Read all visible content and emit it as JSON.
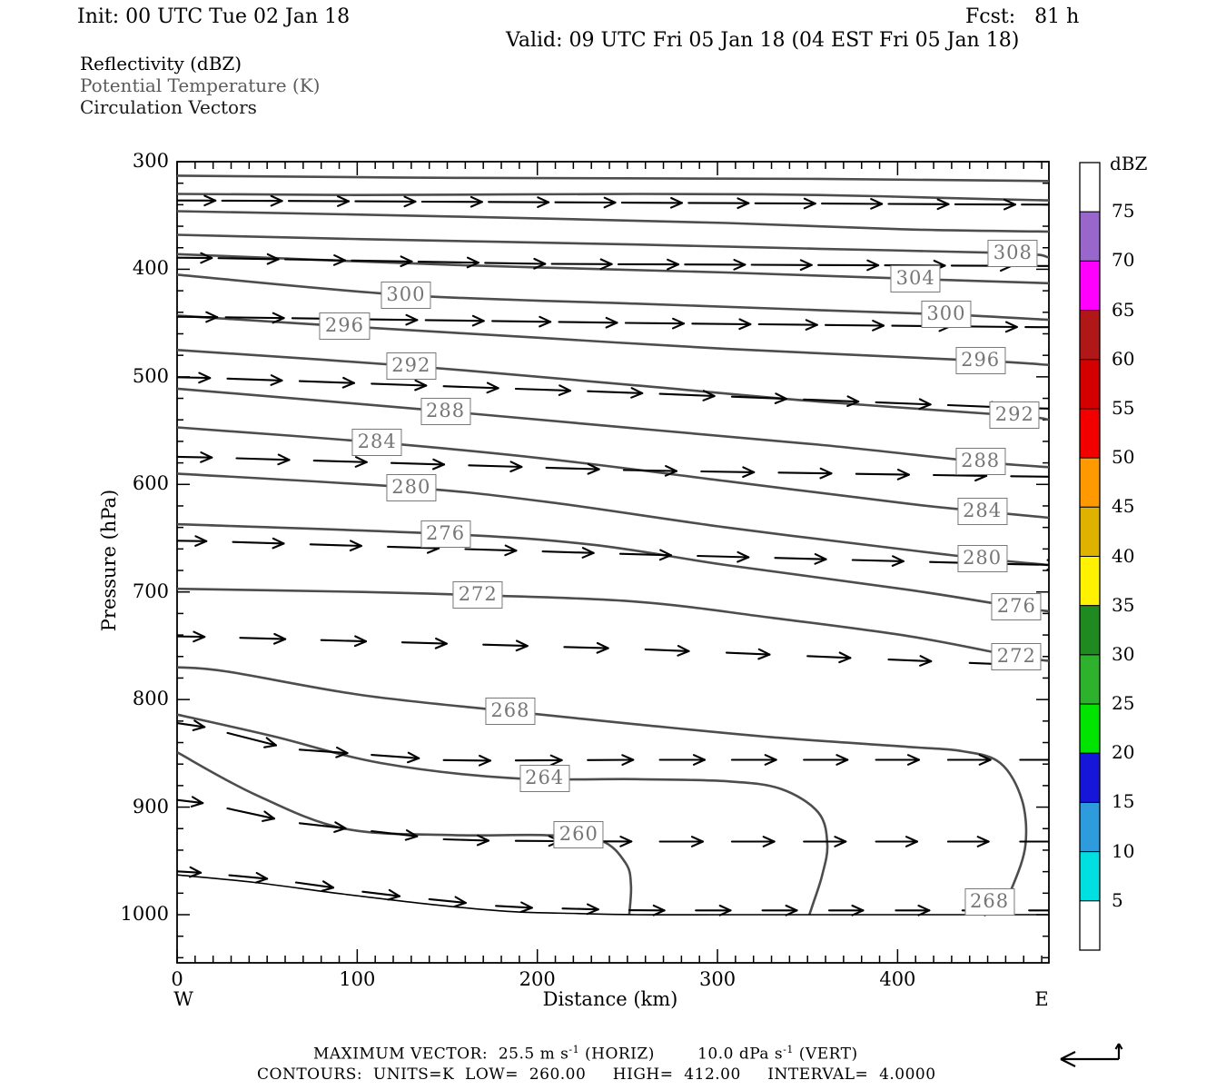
{
  "header": {
    "init": "Init: 00 UTC Tue 02 Jan 18",
    "fcst": "Fcst:   81 h",
    "valid": "Valid: 09 UTC Fri 05 Jan 18 (04 EST Fri 05 Jan 18)",
    "fields": [
      {
        "label": "Reflectivity (dBZ)",
        "color": "#000000"
      },
      {
        "label": "Potential Temperature (K)",
        "color": "#5a5a5a"
      },
      {
        "label": "Circulation Vectors",
        "color": "#1a1a1a"
      }
    ]
  },
  "axes": {
    "y": {
      "title": "Pressure (hPa)"
    },
    "x": {
      "title": "Distance (km)",
      "west": "W",
      "east": "E"
    }
  },
  "footer": {
    "line1": {
      "p1": "MAXIMUM VECTOR:  25.5 m s",
      "s1": "-1",
      "p2": " (HORIZ)        10.0 dPa s",
      "s2": "-1",
      "p3": " (VERT)"
    },
    "line2": "CONTOURS:  UNITS=K  LOW=  260.00     HIGH=  412.00     INTERVAL=  4.0000"
  },
  "chart_data": {
    "type": "contour-cross-section",
    "title": "Reflectivity (dBZ), Potential Temperature (K), Circulation Vectors",
    "xlabel": "Distance (km)",
    "ylabel": "Pressure (hPa)",
    "x_range_km": [
      0,
      484
    ],
    "y_range_hpa": [
      300,
      1045
    ],
    "x_ticks": [
      "0",
      "100",
      "200",
      "300",
      "400"
    ],
    "x_tick_values": [
      0,
      100,
      200,
      300,
      400
    ],
    "x_minor_step": 10,
    "y_ticks": [
      "300",
      "400",
      "500",
      "600",
      "700",
      "800",
      "900",
      "1000"
    ],
    "y_tick_values": [
      300,
      400,
      500,
      600,
      700,
      800,
      900,
      1000
    ],
    "y_minor_step": 20,
    "contour_units": "K",
    "contour_low": 260.0,
    "contour_high": 412.0,
    "contour_interval": 4.0,
    "max_vector_horiz_ms": 25.5,
    "max_vector_vert_dpas": 10.0,
    "contour_color": "#4d4d4d",
    "vector_color": "#000000",
    "isentropes": [
      {
        "value": 320,
        "path": [
          [
            0,
            313
          ],
          [
            154,
            315
          ],
          [
            356,
            316
          ],
          [
            484,
            318
          ]
        ],
        "labels": []
      },
      {
        "value": 316,
        "path": [
          [
            0,
            330
          ],
          [
            103,
            331
          ],
          [
            255,
            330
          ],
          [
            356,
            331
          ],
          [
            456,
            335
          ],
          [
            484,
            336
          ]
        ],
        "labels": []
      },
      {
        "value": 312,
        "path": [
          [
            0,
            346
          ],
          [
            154,
            351
          ],
          [
            305,
            357
          ],
          [
            406,
            363
          ],
          [
            484,
            365
          ]
        ],
        "labels": []
      },
      {
        "value": 308,
        "path": [
          [
            0,
            368
          ],
          [
            103,
            372
          ],
          [
            255,
            377
          ],
          [
            356,
            381
          ],
          [
            464,
            385
          ],
          [
            484,
            389
          ]
        ],
        "labels": [
          [
            464,
            385
          ]
        ]
      },
      {
        "value": 304,
        "path": [
          [
            0,
            386
          ],
          [
            154,
            396
          ],
          [
            305,
            403
          ],
          [
            410,
            409
          ],
          [
            484,
            413
          ]
        ],
        "labels": [
          [
            410,
            409
          ]
        ]
      },
      {
        "value": 300,
        "path": [
          [
            0,
            405
          ],
          [
            127,
            424
          ],
          [
            255,
            432
          ],
          [
            356,
            438
          ],
          [
            427,
            442
          ],
          [
            484,
            447
          ]
        ],
        "labels": [
          [
            127,
            424
          ],
          [
            427,
            442
          ]
        ]
      },
      {
        "value": 296,
        "path": [
          [
            0,
            443
          ],
          [
            93,
            453
          ],
          [
            204,
            464
          ],
          [
            305,
            474
          ],
          [
            446,
            485
          ],
          [
            484,
            489
          ]
        ],
        "labels": [
          [
            93,
            453
          ],
          [
            446,
            485
          ]
        ]
      },
      {
        "value": 292,
        "path": [
          [
            0,
            475
          ],
          [
            130,
            490
          ],
          [
            255,
            508
          ],
          [
            356,
            523
          ],
          [
            465,
            536
          ],
          [
            484,
            540
          ]
        ],
        "labels": [
          [
            130,
            490
          ],
          [
            465,
            536
          ]
        ]
      },
      {
        "value": 288,
        "path": [
          [
            0,
            511
          ],
          [
            149,
            532
          ],
          [
            255,
            548
          ],
          [
            356,
            563
          ],
          [
            446,
            579
          ],
          [
            484,
            584
          ]
        ],
        "labels": [
          [
            149,
            532
          ],
          [
            446,
            579
          ]
        ]
      },
      {
        "value": 284,
        "path": [
          [
            0,
            547
          ],
          [
            111,
            561
          ],
          [
            204,
            576
          ],
          [
            305,
            597
          ],
          [
            406,
            618
          ],
          [
            447,
            625
          ],
          [
            484,
            631
          ]
        ],
        "labels": [
          [
            111,
            561
          ],
          [
            447,
            625
          ]
        ]
      },
      {
        "value": 280,
        "path": [
          [
            0,
            590
          ],
          [
            130,
            603
          ],
          [
            204,
            616
          ],
          [
            305,
            640
          ],
          [
            406,
            661
          ],
          [
            447,
            669
          ],
          [
            484,
            675
          ]
        ],
        "labels": [
          [
            130,
            603
          ],
          [
            447,
            669
          ]
        ]
      },
      {
        "value": 276,
        "path": [
          [
            0,
            637
          ],
          [
            149,
            646
          ],
          [
            230,
            656
          ],
          [
            305,
            675
          ],
          [
            406,
            698
          ],
          [
            466,
            714
          ],
          [
            484,
            718
          ]
        ],
        "labels": [
          [
            149,
            646
          ],
          [
            466,
            714
          ]
        ]
      },
      {
        "value": 272,
        "path": [
          [
            0,
            697
          ],
          [
            103,
            700
          ],
          [
            167,
            703
          ],
          [
            255,
            709
          ],
          [
            330,
            724
          ],
          [
            406,
            741
          ],
          [
            466,
            760
          ],
          [
            484,
            764
          ]
        ],
        "labels": [
          [
            167,
            703
          ],
          [
            466,
            760
          ]
        ]
      },
      {
        "value": 268,
        "path": [
          [
            0,
            770
          ],
          [
            28,
            774
          ],
          [
            103,
            796
          ],
          [
            185,
            811
          ],
          [
            255,
            823
          ],
          [
            330,
            835
          ],
          [
            406,
            844
          ],
          [
            436,
            848
          ],
          [
            457,
            859
          ],
          [
            469,
            893
          ],
          [
            471,
            935
          ],
          [
            464,
            973
          ],
          [
            457,
            994
          ],
          [
            454,
            1000
          ]
        ],
        "labels": [
          [
            185,
            811
          ],
          [
            451,
            988
          ]
        ]
      },
      {
        "value": 264,
        "path": [
          [
            0,
            814
          ],
          [
            53,
            834
          ],
          [
            113,
            859
          ],
          [
            185,
            873
          ],
          [
            255,
            874
          ],
          [
            305,
            876
          ],
          [
            335,
            883
          ],
          [
            356,
            905
          ],
          [
            361,
            935
          ],
          [
            358,
            964
          ],
          [
            353,
            990
          ],
          [
            351,
            1000
          ]
        ],
        "labels": [
          [
            204,
            873
          ]
        ]
      },
      {
        "value": 260,
        "path": [
          [
            0,
            849
          ],
          [
            43,
            888
          ],
          [
            93,
            920
          ],
          [
            154,
            926
          ],
          [
            204,
            926
          ],
          [
            235,
            931
          ],
          [
            249,
            952
          ],
          [
            252,
            973
          ],
          [
            251,
            1000
          ]
        ],
        "labels": [
          [
            223,
            926
          ]
        ]
      }
    ],
    "surface_line": [
      [
        0,
        963
      ],
      [
        43,
        970
      ],
      [
        93,
        981
      ],
      [
        144,
        991
      ],
      [
        184,
        997
      ],
      [
        224,
        999
      ],
      [
        255,
        1000
      ],
      [
        305,
        1000
      ],
      [
        484,
        1000
      ]
    ],
    "vector_rows": [
      {
        "path": [
          [
            0,
            336
          ],
          [
            484,
            340
          ]
        ],
        "x0": -12,
        "dx": 37,
        "n": 15,
        "len": 66,
        "lenEnd": 66
      },
      {
        "path": [
          [
            0,
            389
          ],
          [
            204,
            395
          ],
          [
            484,
            397
          ]
        ],
        "x0": -14,
        "dx": 37,
        "n": 15,
        "len": 66,
        "lenEnd": 66
      },
      {
        "path": [
          [
            0,
            444
          ],
          [
            255,
            450
          ],
          [
            484,
            454
          ]
        ],
        "x0": -10,
        "dx": 37,
        "n": 15,
        "len": 64,
        "lenEnd": 64
      },
      {
        "path": [
          [
            0,
            500
          ],
          [
            255,
            515
          ],
          [
            484,
            530
          ]
        ],
        "x0": -12,
        "dx": 40,
        "n": 13,
        "len": 60,
        "lenEnd": 60
      },
      {
        "path": [
          [
            0,
            574
          ],
          [
            255,
            587
          ],
          [
            484,
            593
          ]
        ],
        "x0": -10,
        "dx": 43,
        "n": 12,
        "len": 58,
        "lenEnd": 58
      },
      {
        "path": [
          [
            0,
            652
          ],
          [
            255,
            665
          ],
          [
            484,
            675
          ]
        ],
        "x0": -12,
        "dx": 43,
        "n": 12,
        "len": 56,
        "lenEnd": 56
      },
      {
        "path": [
          [
            0,
            741
          ],
          [
            255,
            753
          ],
          [
            484,
            769
          ]
        ],
        "x0": -10,
        "dx": 45,
        "n": 12,
        "len": 50,
        "lenEnd": 46
      },
      {
        "path": [
          [
            0,
            819
          ],
          [
            63,
            846
          ],
          [
            154,
            857
          ],
          [
            255,
            856
          ],
          [
            484,
            856
          ]
        ],
        "x0": -12,
        "dx": 40,
        "n": 13,
        "len": 54,
        "lenEnd": 46
      },
      {
        "path": [
          [
            0,
            891
          ],
          [
            63,
            914
          ],
          [
            154,
            931
          ],
          [
            255,
            932
          ],
          [
            484,
            932
          ]
        ],
        "x0": -12,
        "dx": 40,
        "n": 13,
        "len": 52,
        "lenEnd": 44
      },
      {
        "path": [
          [
            0,
            959
          ],
          [
            53,
            967
          ],
          [
            113,
            981
          ],
          [
            184,
            993
          ],
          [
            255,
            996
          ],
          [
            484,
            996
          ]
        ],
        "x0": -8,
        "dx": 37,
        "n": 14,
        "len": 42,
        "lenEnd": 36
      }
    ],
    "colorbar": {
      "title": "dBZ",
      "labels": [
        "75",
        "70",
        "65",
        "60",
        "55",
        "50",
        "45",
        "40",
        "35",
        "30",
        "25",
        "20",
        "15",
        "10",
        "5"
      ],
      "values_dbz": [
        75,
        70,
        65,
        60,
        55,
        50,
        45,
        40,
        35,
        30,
        25,
        20,
        15,
        10,
        5
      ],
      "colors_top_to_bottom": [
        "#FFFFFF",
        "#9966CC",
        "#FF00FF",
        "#B01818",
        "#D40000",
        "#F20000",
        "#FF9900",
        "#E0B200",
        "#FFF200",
        "#1F8A1F",
        "#2EB22E",
        "#00E400",
        "#1616D8",
        "#2E9BDC",
        "#00E0E0",
        "#FFFFFF"
      ]
    }
  }
}
